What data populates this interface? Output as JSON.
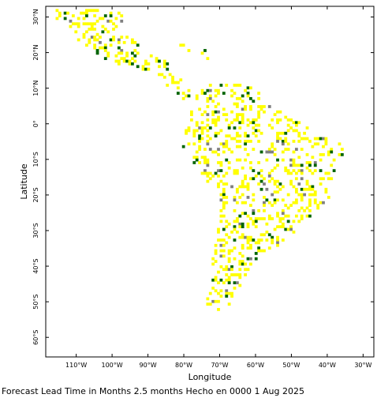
{
  "chart_data": {
    "type": "map",
    "xlabel": "Longitude",
    "ylabel": "Latitude",
    "x_ticks": [
      {
        "value": -110,
        "label": "110°W"
      },
      {
        "value": -100,
        "label": "100°W"
      },
      {
        "value": -90,
        "label": "90°W"
      },
      {
        "value": -80,
        "label": "80°W"
      },
      {
        "value": -70,
        "label": "70°W"
      },
      {
        "value": -60,
        "label": "60°W"
      },
      {
        "value": -50,
        "label": "50°W"
      },
      {
        "value": -40,
        "label": "40°W"
      },
      {
        "value": -30,
        "label": "30°W"
      }
    ],
    "y_ticks": [
      {
        "value": 30,
        "label": "30°N"
      },
      {
        "value": 20,
        "label": "20°N"
      },
      {
        "value": 10,
        "label": "10°N"
      },
      {
        "value": 0,
        "label": "0°"
      },
      {
        "value": -10,
        "label": "10°S"
      },
      {
        "value": -20,
        "label": "20°S"
      },
      {
        "value": -30,
        "label": "30°S"
      },
      {
        "value": -40,
        "label": "40°S"
      },
      {
        "value": -50,
        "label": "50°S"
      },
      {
        "value": -60,
        "label": "60°S"
      }
    ],
    "xlim": [
      -118.5,
      -27
    ],
    "ylim": [
      -65.5,
      33
    ],
    "colors": {
      "frame": "#000000",
      "yellow": "#ffff00",
      "green": "#006400",
      "gray": "#808080"
    }
  },
  "footer": {
    "caption": "Forecast Lead Time in Months 2.5 months Hecho en 0000 1 Aug 2025"
  }
}
